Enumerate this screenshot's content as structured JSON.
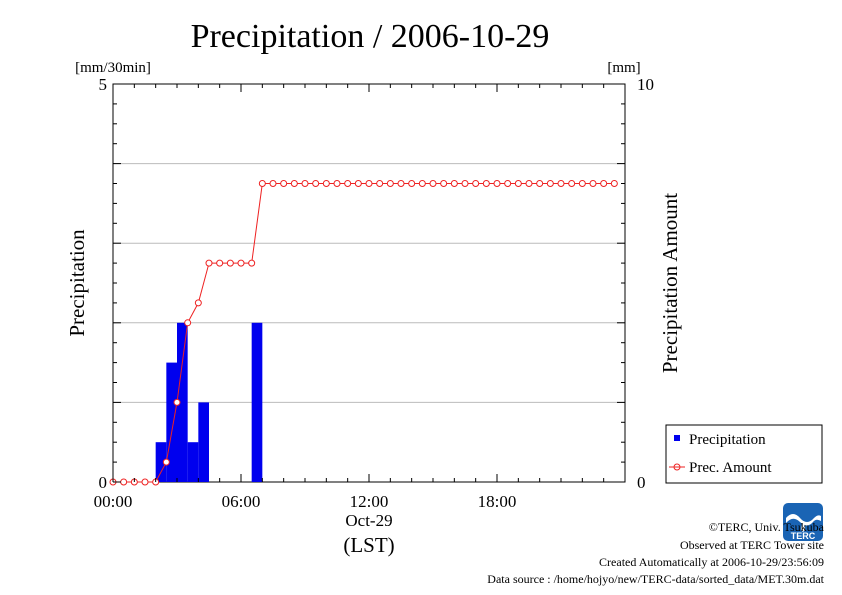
{
  "chart_data": {
    "type": "bar+line",
    "title": "Precipitation / 2006-10-29",
    "y_left_label": "Precipitation",
    "y_left_unit": "[mm/30min]",
    "y_left_lim": [
      0,
      5
    ],
    "y_left_ticks": [
      "0",
      "5"
    ],
    "y_right_label": "Precipitation Amount",
    "y_right_unit": "[mm]",
    "y_right_lim": [
      0,
      10
    ],
    "y_right_ticks": [
      "0",
      "10"
    ],
    "x_lim_hours": [
      0,
      24
    ],
    "x_ticks": [
      {
        "hour": 0,
        "label": "00:00"
      },
      {
        "hour": 6,
        "label": "06:00"
      },
      {
        "hour": 12,
        "label": "12:00"
      },
      {
        "hour": 18,
        "label": "18:00"
      }
    ],
    "x_sublabel": "Oct-29",
    "x_label": "(LST)",
    "grid": "horizontal",
    "legend_position": "bottom-right",
    "series": [
      {
        "name": "Precipitation",
        "kind": "bar",
        "axis": "left",
        "color": "#0000ee",
        "interval_hours": 0.5,
        "start_hours": [
          2.0,
          2.5,
          3.0,
          3.5,
          4.0,
          6.5
        ],
        "values": [
          0.5,
          1.5,
          2.0,
          0.5,
          1.0,
          2.0
        ]
      },
      {
        "name": "Prec. Amount",
        "kind": "line",
        "axis": "right",
        "color": "#ee2222",
        "hours": [
          0.0,
          0.5,
          1.0,
          1.5,
          2.0,
          2.5,
          3.0,
          3.5,
          4.0,
          4.5,
          5.0,
          5.5,
          6.0,
          6.5,
          7.0,
          7.5,
          8.0,
          8.5,
          9.0,
          9.5,
          10.0,
          10.5,
          11.0,
          11.5,
          12.0,
          12.5,
          13.0,
          13.5,
          14.0,
          14.5,
          15.0,
          15.5,
          16.0,
          16.5,
          17.0,
          17.5,
          18.0,
          18.5,
          19.0,
          19.5,
          20.0,
          20.5,
          21.0,
          21.5,
          22.0,
          22.5,
          23.0,
          23.5
        ],
        "values": [
          0,
          0,
          0,
          0,
          0,
          0.5,
          2,
          4,
          4.5,
          5.5,
          5.5,
          5.5,
          5.5,
          5.5,
          7.5,
          7.5,
          7.5,
          7.5,
          7.5,
          7.5,
          7.5,
          7.5,
          7.5,
          7.5,
          7.5,
          7.5,
          7.5,
          7.5,
          7.5,
          7.5,
          7.5,
          7.5,
          7.5,
          7.5,
          7.5,
          7.5,
          7.5,
          7.5,
          7.5,
          7.5,
          7.5,
          7.5,
          7.5,
          7.5,
          7.5,
          7.5,
          7.5,
          7.5
        ]
      }
    ]
  },
  "credits": {
    "copyright": "©TERC, Univ. Tsukuba",
    "observed": "Observed at TERC Tower site",
    "created": "Created Automatically at 2006-10-29/23:56:09",
    "source": "Data source : /home/hojyo/new/TERC-data/sorted_data/MET.30m.dat",
    "logo_text": "TERC"
  }
}
